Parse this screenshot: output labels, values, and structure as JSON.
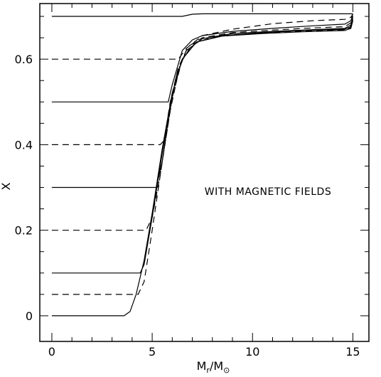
{
  "chart_data": {
    "type": "line",
    "title": "",
    "xlabel": "",
    "xlabel_main": "M",
    "xlabel_sub": "r",
    "xlabel_sep": "/M",
    "xlabel_sun": "⊙",
    "ylabel": "X",
    "xlim": [
      -0.6,
      15.8
    ],
    "ylim": [
      -0.06,
      0.73
    ],
    "grid": false,
    "x_ticks": [
      "0",
      "5",
      "10",
      "15"
    ],
    "y_ticks": [
      "0",
      "0.2",
      "0.4",
      "0.6"
    ],
    "annotation": "WITH MAGNETIC FIELDS",
    "series": [
      {
        "style": "solid",
        "x": [
          0,
          6.5,
          7.0,
          7.5,
          10,
          12,
          14.6,
          14.9,
          15.0
        ],
        "y": [
          0.7,
          0.7,
          0.705,
          0.706,
          0.706,
          0.706,
          0.706,
          0.706,
          0.706
        ]
      },
      {
        "style": "dashed",
        "x": [
          0,
          6.3,
          6.7,
          7.5,
          9.0,
          11.0,
          13.0,
          14.6,
          14.9,
          15.0
        ],
        "y": [
          0.6,
          0.6,
          0.625,
          0.655,
          0.67,
          0.683,
          0.69,
          0.693,
          0.698,
          0.705
        ]
      },
      {
        "style": "solid",
        "x": [
          0,
          5.8,
          6.0,
          6.5,
          7.0,
          7.5,
          9.0,
          11.0,
          13.0,
          14.6,
          14.9,
          15.0
        ],
        "y": [
          0.5,
          0.5,
          0.54,
          0.62,
          0.645,
          0.655,
          0.665,
          0.672,
          0.678,
          0.682,
          0.69,
          0.705
        ]
      },
      {
        "style": "dashed",
        "x": [
          0,
          5.4,
          5.6,
          5.9,
          6.3,
          6.8,
          7.5,
          9.0,
          11.0,
          13.0,
          14.6,
          14.9,
          15.0
        ],
        "y": [
          0.4,
          0.4,
          0.41,
          0.5,
          0.58,
          0.63,
          0.65,
          0.662,
          0.668,
          0.673,
          0.676,
          0.685,
          0.7
        ]
      },
      {
        "style": "solid",
        "x": [
          0,
          5.2,
          5.5,
          5.8,
          6.2,
          6.7,
          7.5,
          9.0,
          11.0,
          13.0,
          14.6,
          14.9,
          15.0
        ],
        "y": [
          0.3,
          0.3,
          0.36,
          0.46,
          0.56,
          0.62,
          0.648,
          0.66,
          0.665,
          0.669,
          0.672,
          0.68,
          0.7
        ]
      },
      {
        "style": "dashed",
        "x": [
          0,
          4.7,
          5.0,
          5.4,
          5.9,
          6.4,
          7.0,
          8.0,
          10.0,
          12.0,
          14.6,
          14.9,
          15.0
        ],
        "y": [
          0.2,
          0.2,
          0.23,
          0.33,
          0.48,
          0.59,
          0.635,
          0.652,
          0.66,
          0.666,
          0.67,
          0.678,
          0.698
        ]
      },
      {
        "style": "solid",
        "x": [
          0,
          4.4,
          4.6,
          5.0,
          5.5,
          6.0,
          6.5,
          7.2,
          8.5,
          10.5,
          12.5,
          14.6,
          14.9,
          15.0
        ],
        "y": [
          0.1,
          0.1,
          0.12,
          0.23,
          0.38,
          0.52,
          0.6,
          0.64,
          0.655,
          0.662,
          0.667,
          0.67,
          0.676,
          0.695
        ]
      },
      {
        "style": "dashed",
        "x": [
          0,
          4.3,
          4.6,
          5.0,
          5.5,
          6.0,
          6.5,
          7.2,
          8.5,
          10.5,
          12.5,
          14.6,
          14.9,
          15.0
        ],
        "y": [
          0.05,
          0.05,
          0.08,
          0.2,
          0.36,
          0.51,
          0.6,
          0.64,
          0.655,
          0.661,
          0.665,
          0.668,
          0.674,
          0.692
        ]
      },
      {
        "style": "solid",
        "x": [
          0,
          3.6,
          3.9,
          4.2,
          4.6,
          5.0,
          5.5,
          6.0,
          6.5,
          7.2,
          8.5,
          10.5,
          12.5,
          14.6,
          14.9,
          15.0
        ],
        "y": [
          0.0,
          0.0,
          0.01,
          0.05,
          0.13,
          0.24,
          0.39,
          0.52,
          0.6,
          0.64,
          0.654,
          0.66,
          0.664,
          0.667,
          0.672,
          0.69
        ]
      }
    ]
  }
}
